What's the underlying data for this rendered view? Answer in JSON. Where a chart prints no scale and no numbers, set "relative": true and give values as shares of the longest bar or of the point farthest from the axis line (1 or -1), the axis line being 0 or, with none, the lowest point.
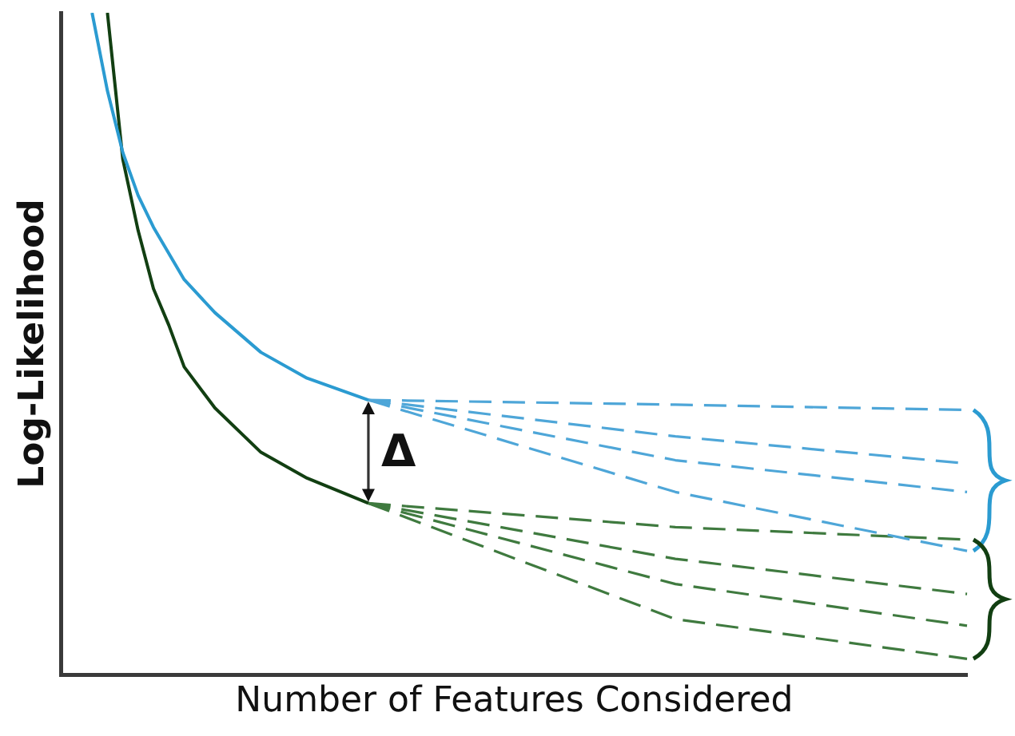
{
  "chart_data": {
    "type": "line",
    "relative": true,
    "xlabel": "Number of Features Considered",
    "ylabel": "Log-Likelihood",
    "legend": false,
    "marker": "none",
    "categories": [
      null,
      null,
      null,
      null,
      null,
      null,
      null,
      null,
      null,
      null,
      null,
      null,
      null,
      null,
      null,
      null,
      null,
      null,
      null,
      null,
      null,
      null,
      null,
      null,
      null,
      null,
      null,
      null,
      null,
      null,
      null,
      null,
      null,
      null,
      null,
      null,
      null,
      null,
      null,
      null,
      null,
      null,
      null,
      null,
      null,
      null,
      null,
      null,
      null,
      null,
      null,
      null,
      null,
      null,
      null,
      null,
      null,
      null,
      null,
      null
    ],
    "annotations": [
      "Δ"
    ],
    "series": [
      {
        "color": "#2b9bd1",
        "line_style": "solid",
        "values": [
          null,
          null,
          1.0,
          0.882,
          0.789,
          0.724,
          0.676,
          null,
          0.597,
          null,
          0.547,
          null,
          null,
          0.487,
          null,
          null,
          0.448,
          null,
          null,
          null,
          0.415,
          null,
          null,
          null,
          null,
          null,
          null,
          null,
          null,
          null,
          null,
          null,
          null,
          null,
          null,
          null,
          null,
          null,
          null,
          null,
          null,
          null,
          null,
          null,
          null,
          null,
          null,
          null,
          null,
          null,
          null,
          null,
          null,
          null,
          null,
          null,
          null,
          null,
          null,
          null
        ]
      },
      {
        "color": "#123f12",
        "line_style": "solid",
        "values": [
          null,
          null,
          null,
          1.0,
          0.779,
          0.671,
          0.583,
          0.528,
          0.465,
          null,
          0.403,
          null,
          null,
          0.336,
          null,
          null,
          0.297,
          null,
          null,
          null,
          0.259,
          null,
          null,
          null,
          null,
          null,
          null,
          null,
          null,
          null,
          null,
          null,
          null,
          null,
          null,
          null,
          null,
          null,
          null,
          null,
          null,
          null,
          null,
          null,
          null,
          null,
          null,
          null,
          null,
          null,
          null,
          null,
          null,
          null,
          null,
          null,
          null,
          null,
          null,
          null
        ]
      },
      {
        "color": "#4ea6d8",
        "line_style": "dashed",
        "values": [
          null,
          null,
          null,
          null,
          null,
          null,
          null,
          null,
          null,
          null,
          null,
          null,
          null,
          null,
          null,
          null,
          null,
          null,
          null,
          null,
          0.415,
          null,
          null,
          null,
          null,
          null,
          null,
          null,
          null,
          null,
          null,
          null,
          null,
          null,
          null,
          null,
          null,
          null,
          null,
          null,
          0.408,
          null,
          null,
          null,
          null,
          null,
          null,
          null,
          null,
          null,
          null,
          null,
          null,
          null,
          null,
          null,
          null,
          null,
          null,
          0.4
        ]
      },
      {
        "color": "#4ea6d8",
        "line_style": "dashed",
        "values": [
          null,
          null,
          null,
          null,
          null,
          null,
          null,
          null,
          null,
          null,
          null,
          null,
          null,
          null,
          null,
          null,
          null,
          null,
          null,
          null,
          0.415,
          null,
          null,
          null,
          null,
          null,
          null,
          null,
          null,
          null,
          null,
          null,
          null,
          null,
          null,
          null,
          null,
          null,
          null,
          null,
          0.36,
          null,
          null,
          null,
          null,
          null,
          null,
          null,
          null,
          null,
          null,
          null,
          null,
          null,
          null,
          null,
          null,
          null,
          null,
          0.319
        ]
      },
      {
        "color": "#4ea6d8",
        "line_style": "dashed",
        "values": [
          null,
          null,
          null,
          null,
          null,
          null,
          null,
          null,
          null,
          null,
          null,
          null,
          null,
          null,
          null,
          null,
          null,
          null,
          null,
          null,
          0.415,
          null,
          null,
          null,
          null,
          null,
          null,
          null,
          null,
          null,
          null,
          null,
          null,
          null,
          null,
          null,
          null,
          null,
          null,
          null,
          0.324,
          null,
          null,
          null,
          null,
          null,
          null,
          null,
          null,
          null,
          null,
          null,
          null,
          null,
          null,
          null,
          null,
          null,
          null,
          0.276
        ]
      },
      {
        "color": "#4ea6d8",
        "line_style": "dashed",
        "values": [
          null,
          null,
          null,
          null,
          null,
          null,
          null,
          null,
          null,
          null,
          null,
          null,
          null,
          null,
          null,
          null,
          null,
          null,
          null,
          null,
          0.415,
          null,
          null,
          null,
          null,
          null,
          null,
          null,
          null,
          null,
          null,
          null,
          null,
          null,
          null,
          null,
          null,
          null,
          null,
          null,
          0.276,
          null,
          null,
          null,
          null,
          null,
          null,
          null,
          null,
          null,
          null,
          null,
          null,
          null,
          null,
          null,
          null,
          null,
          null,
          0.187
        ]
      },
      {
        "color": "#3f7a3f",
        "line_style": "dashed",
        "values": [
          null,
          null,
          null,
          null,
          null,
          null,
          null,
          null,
          null,
          null,
          null,
          null,
          null,
          null,
          null,
          null,
          null,
          null,
          null,
          null,
          0.259,
          null,
          null,
          null,
          null,
          null,
          null,
          null,
          null,
          null,
          null,
          null,
          null,
          null,
          null,
          null,
          null,
          null,
          null,
          null,
          0.223,
          null,
          null,
          null,
          null,
          null,
          null,
          null,
          null,
          null,
          null,
          null,
          null,
          null,
          null,
          null,
          null,
          null,
          null,
          0.204
        ]
      },
      {
        "color": "#3f7a3f",
        "line_style": "dashed",
        "values": [
          null,
          null,
          null,
          null,
          null,
          null,
          null,
          null,
          null,
          null,
          null,
          null,
          null,
          null,
          null,
          null,
          null,
          null,
          null,
          null,
          0.259,
          null,
          null,
          null,
          null,
          null,
          null,
          null,
          null,
          null,
          null,
          null,
          null,
          null,
          null,
          null,
          null,
          null,
          null,
          null,
          0.175,
          null,
          null,
          null,
          null,
          null,
          null,
          null,
          null,
          null,
          null,
          null,
          null,
          null,
          null,
          null,
          null,
          null,
          null,
          0.122
        ]
      },
      {
        "color": "#3f7a3f",
        "line_style": "dashed",
        "values": [
          null,
          null,
          null,
          null,
          null,
          null,
          null,
          null,
          null,
          null,
          null,
          null,
          null,
          null,
          null,
          null,
          null,
          null,
          null,
          null,
          0.259,
          null,
          null,
          null,
          null,
          null,
          null,
          null,
          null,
          null,
          null,
          null,
          null,
          null,
          null,
          null,
          null,
          null,
          null,
          null,
          0.137,
          null,
          null,
          null,
          null,
          null,
          null,
          null,
          null,
          null,
          null,
          null,
          null,
          null,
          null,
          null,
          null,
          null,
          null,
          0.074
        ]
      },
      {
        "color": "#3f7a3f",
        "line_style": "dashed",
        "values": [
          null,
          null,
          null,
          null,
          null,
          null,
          null,
          null,
          null,
          null,
          null,
          null,
          null,
          null,
          null,
          null,
          null,
          null,
          null,
          null,
          0.259,
          null,
          null,
          null,
          null,
          null,
          null,
          null,
          null,
          null,
          null,
          null,
          null,
          null,
          null,
          null,
          null,
          null,
          null,
          null,
          0.084,
          null,
          null,
          null,
          null,
          null,
          null,
          null,
          null,
          null,
          null,
          null,
          null,
          null,
          null,
          null,
          null,
          null,
          null,
          0.024
        ]
      }
    ]
  }
}
